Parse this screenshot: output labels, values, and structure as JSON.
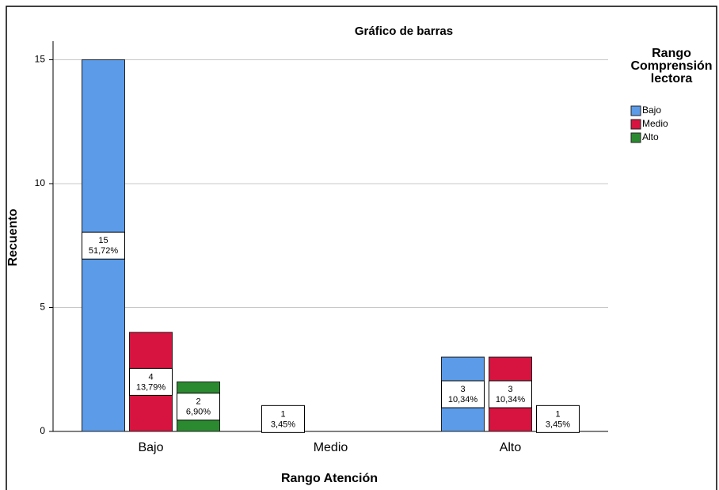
{
  "chart_data": {
    "type": "bar",
    "title": "Gráfico de barras",
    "x_label": "Rango Atención",
    "y_label": "Recuento",
    "legend_title": "Rango Comprensión lectora",
    "categories": [
      "Bajo",
      "Medio",
      "Alto"
    ],
    "series": [
      {
        "name": "Bajo",
        "color": "#5b9be8",
        "values": [
          15,
          1,
          3
        ],
        "percent_labels": [
          "51,72%",
          "3,45%",
          "10,34%"
        ]
      },
      {
        "name": "Medio",
        "color": "#d7143f",
        "values": [
          4,
          null,
          3
        ],
        "percent_labels": [
          "13,79%",
          null,
          "10,34%"
        ]
      },
      {
        "name": "Alto",
        "color": "#2b8a30",
        "values": [
          2,
          null,
          1
        ],
        "percent_labels": [
          "6,90%",
          null,
          "3,45%"
        ]
      }
    ],
    "ylim": [
      0,
      15.75
    ],
    "yticks": [
      0,
      5,
      10,
      15
    ],
    "grid": true,
    "legend": "right"
  }
}
